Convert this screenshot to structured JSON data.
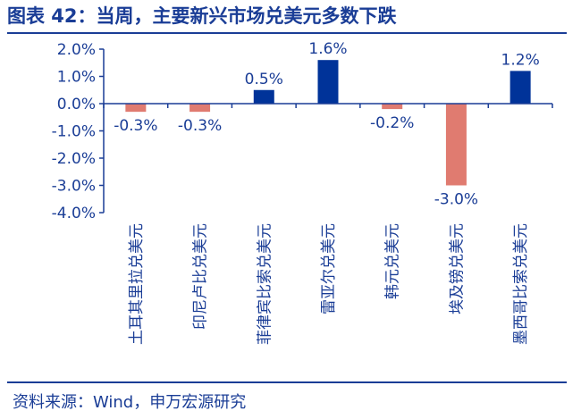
{
  "header": {
    "title": "图表 42：当周，主要新兴市场兑美元多数下跌"
  },
  "footer": {
    "source": "资料来源：Wind，申万宏源研究"
  },
  "colors": {
    "positive": "#003399",
    "negative": "#e07b70",
    "text": "#1a3d96"
  },
  "chart_data": {
    "type": "bar",
    "categories": [
      "土耳其里拉兑美元",
      "印尼卢比兑美元",
      "菲律宾比索兑美元",
      "雷亚尔兑美元",
      "韩元兑美元",
      "埃及镑兑美元",
      "墨西哥比索兑美元"
    ],
    "values": [
      -0.3,
      -0.3,
      0.5,
      1.6,
      -0.2,
      -3.0,
      1.2
    ],
    "data_labels": [
      "-0.3%",
      "-0.3%",
      "0.5%",
      "1.6%",
      "-0.2%",
      "-3.0%",
      "1.2%"
    ],
    "ylim": [
      -4.0,
      2.0
    ],
    "yticks": [
      2.0,
      1.0,
      0.0,
      -1.0,
      -2.0,
      -3.0,
      -4.0
    ],
    "ytick_labels": [
      "2.0%",
      "1.0%",
      "0.0%",
      "-1.0%",
      "-2.0%",
      "-3.0%",
      "-4.0%"
    ],
    "grid": false,
    "legend": false
  }
}
